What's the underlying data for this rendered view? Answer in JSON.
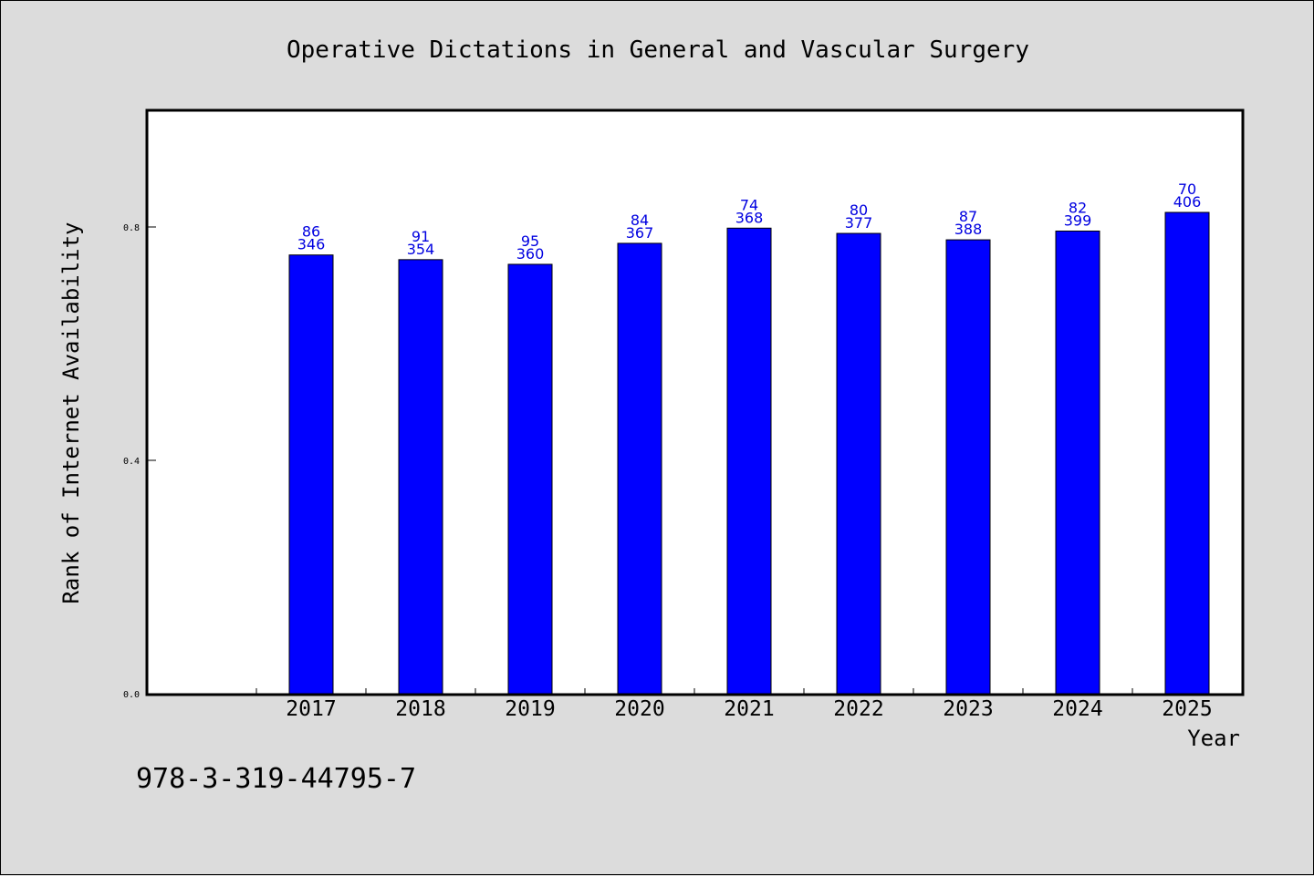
{
  "chart_data": {
    "type": "bar",
    "title": "Operative Dictations in General and Vascular Surgery",
    "xlabel": "Year",
    "ylabel": "Rank of Internet Availability",
    "footer": "978-3-319-44795-7",
    "categories": [
      "2017",
      "2018",
      "2019",
      "2020",
      "2021",
      "2022",
      "2023",
      "2024",
      "2025"
    ],
    "values": [
      0.752,
      0.744,
      0.736,
      0.772,
      0.798,
      0.789,
      0.778,
      0.793,
      0.825
    ],
    "labels_top": [
      "86",
      "91",
      "95",
      "84",
      "74",
      "80",
      "87",
      "82",
      "70"
    ],
    "labels_bottom": [
      "346",
      "354",
      "360",
      "367",
      "368",
      "377",
      "388",
      "399",
      "406"
    ],
    "yticks": [
      {
        "value": 0.0,
        "label": "0.0"
      },
      {
        "value": 0.4,
        "label": "0.4"
      },
      {
        "value": 0.8,
        "label": "0.8"
      }
    ],
    "ylim": [
      0,
      1.0
    ],
    "x_slots": 10,
    "bar_color": "#0000ff",
    "label_color": "#0000e0",
    "grid": false,
    "legend": "none"
  }
}
